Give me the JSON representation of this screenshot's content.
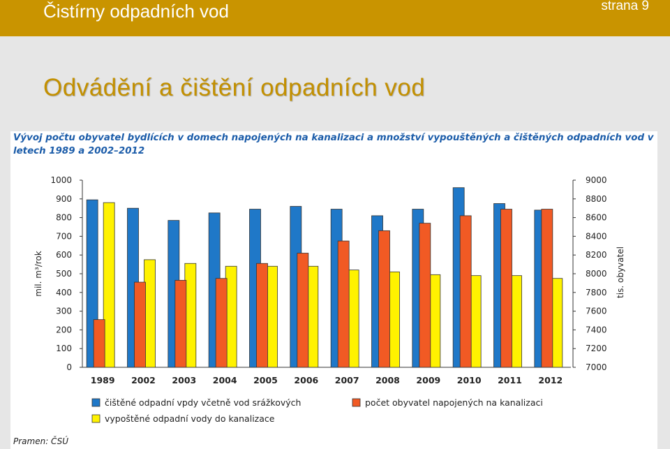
{
  "header": {
    "title": "Čistírny odpadních vod",
    "page": "strana 9"
  },
  "heading": "Odvádění a čištění odpadních vod",
  "source": "Pramen: ČSÚ",
  "chart_data": {
    "type": "bar",
    "title": "Vývoj počtu obyvatel bydlících v domech napojených na kanalizaci a množství vypouštěných a čištěných odpadních vod v letech 1989 a 2002–2012",
    "categories": [
      "1989",
      "2002",
      "2003",
      "2004",
      "2005",
      "2006",
      "2007",
      "2008",
      "2009",
      "2010",
      "2011",
      "2012"
    ],
    "ylabel_left": "mil. m³/rok",
    "ylabel_right": "tis. obyvatel",
    "ylim_left": [
      0,
      1000
    ],
    "ylim_right": [
      7000,
      9000
    ],
    "yticks_left": [
      "0",
      "100",
      "200",
      "300",
      "400",
      "500",
      "600",
      "700",
      "800",
      "900",
      "1000"
    ],
    "yticks_right": [
      "7000",
      "7200",
      "7400",
      "7600",
      "7800",
      "8000",
      "8200",
      "8400",
      "8600",
      "8800",
      "9000"
    ],
    "colors": {
      "blue": "#1f78c8",
      "orange": "#f15a24",
      "yellow": "#fff200"
    },
    "series": [
      {
        "name": "čištěné odpadní vpdy včetně vod srážkových",
        "axis": "left",
        "color": "#1f78c8",
        "values": [
          895,
          850,
          785,
          825,
          845,
          860,
          845,
          810,
          845,
          960,
          875,
          840
        ]
      },
      {
        "name": "vypoštěné odpadní vody do kanalizace",
        "axis": "left",
        "color": "#fff200",
        "values": [
          880,
          575,
          555,
          540,
          540,
          540,
          520,
          510,
          495,
          490,
          490,
          475
        ]
      },
      {
        "name": "počet obyvatel napojených na kanalizaci",
        "axis": "right",
        "color": "#f15a24",
        "values": [
          7510,
          7910,
          7930,
          7950,
          8110,
          8220,
          8350,
          8460,
          8540,
          8620,
          8690,
          8690
        ]
      }
    ],
    "legend": [
      {
        "label": "čištěné odpadní vpdy včetně vod srážkových",
        "color": "#1f78c8"
      },
      {
        "label": "počet obyvatel napojených na kanalizaci",
        "color": "#f15a24"
      },
      {
        "label": "vypoštěné odpadní vody do kanalizace",
        "color": "#fff200"
      }
    ]
  }
}
